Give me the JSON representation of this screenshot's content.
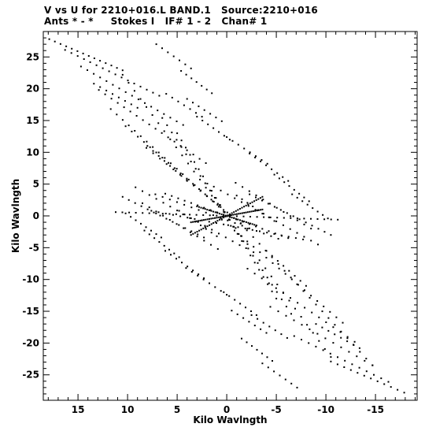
{
  "header": {
    "line1": "V vs U for 2210+016.L BAND.1   Source:2210+016",
    "line2": "Ants * - *     Stokes I   IF# 1 - 2   Chan# 1"
  },
  "chart_data": {
    "type": "scatter",
    "title": "V vs U for 2210+016.L BAND.1   Source:2210+016",
    "subtitle": "Ants * - *     Stokes I   IF# 1 - 2   Chan# 1",
    "xlabel": "Kilo Wavlngth",
    "ylabel": "Kilo Wavlngth",
    "xlim": [
      18.5,
      -19.2
    ],
    "ylim": [
      -29.0,
      29.0
    ],
    "x_inverted": true,
    "x_ticks": [
      15,
      10,
      5,
      0,
      -5,
      -10,
      -15
    ],
    "x_tick_labels": [
      "15",
      "10",
      "5",
      "0",
      "-5",
      "-10",
      "-15"
    ],
    "y_ticks": [
      -25,
      -20,
      -15,
      -10,
      -5,
      0,
      5,
      10,
      15,
      20,
      25
    ],
    "y_tick_labels": [
      "-25",
      "-20",
      "-15",
      "-10",
      "-5",
      "0",
      "5",
      "10",
      "15",
      "20",
      "25"
    ],
    "grid": false,
    "marker": "dot",
    "color": "#000000",
    "tracks": [
      {
        "from": [
          17.9,
          27.8
        ],
        "to": [
          10.5,
          22.9
        ],
        "n": 14
      },
      {
        "from": [
          16.3,
          26.1
        ],
        "to": [
          6.8,
          18.9
        ],
        "n": 16
      },
      {
        "from": [
          14.7,
          23.5
        ],
        "to": [
          4.4,
          14.3
        ],
        "n": 17
      },
      {
        "from": [
          12.9,
          19.8
        ],
        "to": [
          2.1,
          8.3
        ],
        "n": 18
      },
      {
        "from": [
          11.7,
          16.8
        ],
        "to": [
          0.2,
          0.6
        ],
        "n": 20
      },
      {
        "from": [
          10.2,
          14.1
        ],
        "to": [
          -0.3,
          0.1
        ],
        "n": 18
      },
      {
        "from": [
          8.1,
          10.7
        ],
        "to": [
          -2.1,
          -2.0
        ],
        "n": 16
      },
      {
        "from": [
          7.2,
          3.4
        ],
        "to": [
          -5.2,
          -3.6
        ],
        "n": 18
      },
      {
        "from": [
          7.6,
          0.8
        ],
        "to": [
          -7.7,
          -3.7
        ],
        "n": 22
      },
      {
        "from": [
          11.2,
          0.6
        ],
        "to": [
          -11.2,
          -0.6
        ],
        "n": 34
      },
      {
        "from": [
          6.2,
          3.5
        ],
        "to": [
          -6.2,
          -3.5
        ],
        "n": 20
      },
      {
        "from": [
          10.5,
          22.2
        ],
        "to": [
          -10.5,
          -22.2
        ],
        "n": 36
      },
      {
        "from": [
          6.5,
          15.4
        ],
        "to": [
          -6.5,
          -15.4
        ],
        "n": 28
      },
      {
        "from": [
          0.5,
          -0.6
        ],
        "to": [
          -11.7,
          -16.8
        ],
        "n": 20
      },
      {
        "from": [
          -1.4,
          -1.2
        ],
        "to": [
          -14.7,
          -23.5
        ],
        "n": 22
      },
      {
        "from": [
          -2.1,
          -8.3
        ],
        "to": [
          -12.9,
          -19.8
        ],
        "n": 16
      },
      {
        "from": [
          -4.4,
          -14.3
        ],
        "to": [
          -14.7,
          -23.5
        ],
        "n": 14
      },
      {
        "from": [
          -6.8,
          -18.9
        ],
        "to": [
          -16.3,
          -26.1
        ],
        "n": 14
      },
      {
        "from": [
          -10.5,
          -22.9
        ],
        "to": [
          -17.9,
          -27.8
        ],
        "n": 12
      },
      {
        "from": [
          7.1,
          27.0
        ],
        "to": [
          3.6,
          23.2
        ],
        "n": 7
      },
      {
        "from": [
          -3.6,
          -23.2
        ],
        "to": [
          -7.1,
          -27.0
        ],
        "n": 7
      },
      {
        "from": [
          4.6,
          22.8
        ],
        "to": [
          1.5,
          19.3
        ],
        "n": 7
      },
      {
        "from": [
          -1.5,
          -19.3
        ],
        "to": [
          -4.6,
          -22.8
        ],
        "n": 7
      },
      {
        "from": [
          4.0,
          18.4
        ],
        "to": [
          0.5,
          14.9
        ],
        "n": 7
      },
      {
        "from": [
          -0.5,
          -14.9
        ],
        "to": [
          -4.0,
          -18.4
        ],
        "n": 7
      },
      {
        "from": [
          3.0,
          15.6
        ],
        "to": [
          -0.3,
          12.0
        ],
        "n": 7
      },
      {
        "from": [
          0.3,
          -12.0
        ],
        "to": [
          -3.0,
          -15.6
        ],
        "n": 7
      },
      {
        "from": [
          0.0,
          12.4
        ],
        "to": [
          -4.1,
          8.2
        ],
        "n": 8
      },
      {
        "from": [
          4.1,
          -8.2
        ],
        "to": [
          0.0,
          -12.4
        ],
        "n": 8
      },
      {
        "from": [
          -2.3,
          9.8
        ],
        "to": [
          -6.2,
          5.5
        ],
        "n": 8
      },
      {
        "from": [
          6.2,
          -5.5
        ],
        "to": [
          2.3,
          -9.8
        ],
        "n": 8
      },
      {
        "from": [
          -4.8,
          6.5
        ],
        "to": [
          -8.3,
          2.3
        ],
        "n": 8
      },
      {
        "from": [
          8.3,
          -2.3
        ],
        "to": [
          4.8,
          -6.5
        ],
        "n": 8
      },
      {
        "from": [
          -6.6,
          3.4
        ],
        "to": [
          -10.2,
          -0.4
        ],
        "n": 8
      },
      {
        "from": [
          10.2,
          0.4
        ],
        "to": [
          6.6,
          -3.4
        ],
        "n": 8
      },
      {
        "from": [
          10.5,
          3.0
        ],
        "to": [
          2.3,
          -3.4
        ],
        "n": 14
      },
      {
        "from": [
          -2.3,
          3.4
        ],
        "to": [
          -10.5,
          -3.0
        ],
        "n": 14
      },
      {
        "from": [
          9.2,
          4.5
        ],
        "to": [
          -1.3,
          -4.6
        ],
        "n": 16
      },
      {
        "from": [
          1.3,
          4.6
        ],
        "to": [
          -9.2,
          -4.5
        ],
        "n": 16
      },
      {
        "from": [
          8.5,
          2.0
        ],
        "to": [
          0.9,
          -5.2
        ],
        "n": 12
      },
      {
        "from": [
          -0.9,
          5.2
        ],
        "to": [
          -8.5,
          -2.0
        ],
        "n": 12
      },
      {
        "from": [
          -1.0,
          3.2
        ],
        "to": [
          -4.8,
          -0.8
        ],
        "n": 8
      },
      {
        "from": [
          4.8,
          0.8
        ],
        "to": [
          1.0,
          -3.2
        ],
        "n": 8
      },
      {
        "from": [
          -3.6,
          1.0
        ],
        "to": [
          3.6,
          -1.0
        ],
        "n": 40
      },
      {
        "from": [
          -3.6,
          3.0
        ],
        "to": [
          3.6,
          -3.0
        ],
        "n": 36
      },
      {
        "from": [
          3.0,
          1.5
        ],
        "to": [
          -3.0,
          -1.5
        ],
        "n": 30
      },
      {
        "from": [
          5.0,
          13.0
        ],
        "to": [
          -5.0,
          -13.0
        ],
        "n": 24
      },
      {
        "from": [
          8.0,
          11.0
        ],
        "to": [
          4.0,
          5.5
        ],
        "n": 8
      },
      {
        "from": [
          -4.0,
          -5.5
        ],
        "to": [
          -8.0,
          -11.0
        ],
        "n": 8
      },
      {
        "from": [
          13.4,
          20.8
        ],
        "to": [
          9.0,
          17.0
        ],
        "n": 8
      },
      {
        "from": [
          -9.0,
          -17.0
        ],
        "to": [
          -13.4,
          -20.8
        ],
        "n": 8
      },
      {
        "from": [
          6.1,
          19.2
        ],
        "to": [
          2.5,
          15.6
        ],
        "n": 7
      },
      {
        "from": [
          -2.5,
          -15.6
        ],
        "to": [
          -6.1,
          -19.2
        ],
        "n": 7
      }
    ]
  }
}
